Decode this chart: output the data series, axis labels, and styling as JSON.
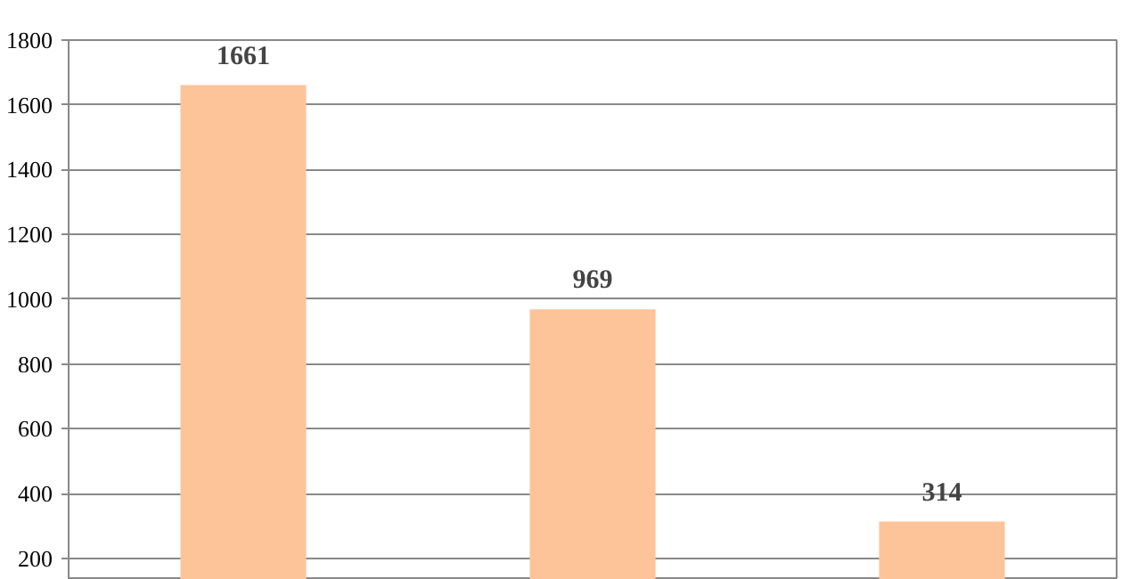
{
  "chart_data": {
    "type": "bar",
    "categories": [
      null,
      null,
      null
    ],
    "values": [
      1661,
      969,
      314
    ],
    "color": "#fdc49a",
    "ylim": [
      134,
      1800
    ],
    "yticks": [
      200,
      400,
      600,
      800,
      1000,
      1200,
      1400,
      1600,
      1800
    ],
    "grid": "y",
    "data_labels": true,
    "tick_labels": "y"
  }
}
